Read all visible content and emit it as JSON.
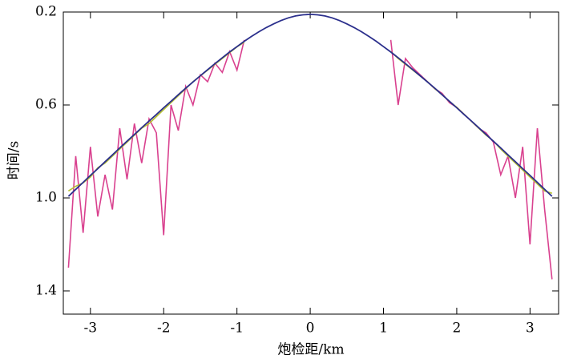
{
  "chart_data": {
    "type": "line",
    "x_label": "炮检距/km",
    "y_label": "时间/s",
    "xlim": [
      -3.37,
      3.39
    ],
    "ylim": [
      0.2,
      1.5
    ],
    "y_inverted": true,
    "xticks": [
      -3,
      -2,
      -1,
      0,
      1,
      2,
      3
    ],
    "yticks": [
      0.2,
      0.6,
      {
        "value": 1,
        "label": "1.0"
      },
      1.4
    ],
    "x": [
      -3.3,
      -3.2,
      -3.1,
      -3.0,
      -2.9,
      -2.8,
      -2.7,
      -2.6,
      -2.5,
      -2.4,
      -2.3,
      -2.2,
      -2.1,
      -2.0,
      -1.9,
      -1.8,
      -1.7,
      -1.6,
      -1.5,
      -1.4,
      -1.3,
      -1.2,
      -1.1,
      -1.0,
      -0.9,
      -0.8,
      -0.7,
      -0.6,
      -0.5,
      -0.4,
      -0.3,
      -0.2,
      -0.1,
      0,
      0.1,
      0.2,
      0.3,
      0.4,
      0.5,
      0.6,
      0.7,
      0.8,
      0.9,
      1.0,
      1.1,
      1.2,
      1.3,
      1.4,
      1.5,
      1.6,
      1.7,
      1.8,
      1.9,
      2.0,
      2.1,
      2.2,
      2.3,
      2.4,
      2.5,
      2.6,
      2.7,
      2.8,
      2.9,
      3.0,
      3.1,
      3.2,
      3.3
    ],
    "series": [
      {
        "color": "#d9418f",
        "values": [
          1.3,
          0.82,
          1.15,
          0.78,
          1.08,
          0.9,
          1.05,
          0.7,
          0.92,
          0.68,
          0.85,
          0.66,
          0.72,
          1.16,
          0.6,
          0.71,
          0.52,
          0.6,
          0.47,
          0.5,
          0.42,
          0.46,
          0.37,
          0.45,
          0.32,
          null,
          null,
          null,
          null,
          null,
          null,
          null,
          null,
          null,
          null,
          null,
          null,
          null,
          null,
          null,
          null,
          null,
          null,
          null,
          0.32,
          0.6,
          0.4,
          0.44,
          0.47,
          0.5,
          0.53,
          0.55,
          0.59,
          0.61,
          0.64,
          0.67,
          0.7,
          0.72,
          0.76,
          0.9,
          0.82,
          1.0,
          0.78,
          1.2,
          0.7,
          1.05,
          1.35
        ]
      },
      {
        "color": "#b5c032",
        "values": [
          0.97,
          0.95,
          0.935,
          0.91,
          0.87,
          0.85,
          0.82,
          0.79,
          0.76,
          0.73,
          0.7,
          0.68,
          0.65,
          0.62,
          0.59,
          0.56,
          0.53,
          0.5,
          0.475,
          0.45,
          0.425,
          0.4,
          0.375,
          0.35,
          0.33,
          null,
          null,
          null,
          null,
          null,
          null,
          null,
          null,
          null,
          null,
          null,
          null,
          null,
          null,
          null,
          null,
          null,
          null,
          null,
          0.37,
          0.4,
          0.425,
          0.45,
          0.475,
          0.5,
          0.53,
          0.555,
          0.585,
          0.61,
          0.64,
          0.67,
          0.7,
          0.73,
          0.755,
          0.79,
          0.82,
          0.85,
          0.88,
          0.91,
          0.94,
          0.97,
          0.98
        ]
      },
      {
        "color": "#2b2f8c",
        "values": [
          0.993,
          0.963,
          0.933,
          0.903,
          0.874,
          0.844,
          0.815,
          0.785,
          0.756,
          0.727,
          0.698,
          0.669,
          0.641,
          0.612,
          0.584,
          0.556,
          0.528,
          0.501,
          0.474,
          0.448,
          0.422,
          0.397,
          0.372,
          0.349,
          0.326,
          0.305,
          0.285,
          0.267,
          0.251,
          0.237,
          0.225,
          0.217,
          0.212,
          0.21,
          0.212,
          0.217,
          0.225,
          0.237,
          0.251,
          0.267,
          0.285,
          0.305,
          0.326,
          0.349,
          0.372,
          0.397,
          0.422,
          0.448,
          0.474,
          0.501,
          0.528,
          0.556,
          0.584,
          0.612,
          0.641,
          0.669,
          0.698,
          0.727,
          0.756,
          0.785,
          0.815,
          0.844,
          0.874,
          0.903,
          0.933,
          0.963,
          0.993
        ]
      }
    ]
  }
}
